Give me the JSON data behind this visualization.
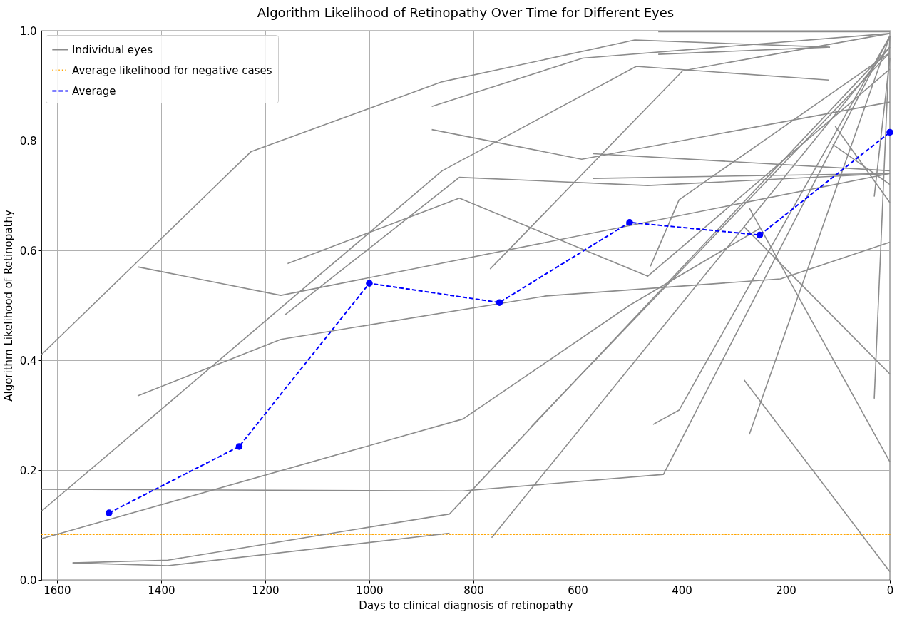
{
  "chart_data": {
    "type": "line",
    "title": "Algorithm Likelihood of Retinopathy Over Time for Different Eyes",
    "xlabel": "Days to clinical diagnosis of retinopathy",
    "ylabel": "Algorithm Likelihood of Retinopathy",
    "xlim": [
      1630,
      0
    ],
    "xticks": [
      1600,
      1400,
      1200,
      1000,
      800,
      600,
      400,
      200,
      0
    ],
    "ylim": [
      0,
      1
    ],
    "yticks": [
      {
        "value": 0,
        "label": "0.0"
      },
      {
        "value": 0.2,
        "label": "0.2"
      },
      {
        "value": 0.4,
        "label": "0.4"
      },
      {
        "value": 0.6,
        "label": "0.6"
      },
      {
        "value": 0.8,
        "label": "0.8"
      },
      {
        "value": 1,
        "label": "1.0"
      }
    ],
    "grid": true,
    "legend": "top left",
    "ref_lines": [
      {
        "axis": "y",
        "value": 0.083,
        "label": "Average likelihood for negative cases",
        "color": "#ffa500",
        "line_style": "dotted"
      }
    ],
    "series": [
      {
        "name": "Individual eyes",
        "color": "#8c8c8c",
        "line_style": "solid",
        "x": [
          1630,
          1227,
          860,
          490,
          115
        ],
        "values": [
          0.41,
          0.78,
          0.907,
          0.983,
          0.97
        ]
      },
      {
        "color": "#8c8c8c",
        "line_style": "solid",
        "x": [
          880,
          590,
          0
        ],
        "values": [
          0.862,
          0.95,
          0.995
        ]
      },
      {
        "color": "#8c8c8c",
        "line_style": "solid",
        "x": [
          880,
          592,
          0
        ],
        "values": [
          0.82,
          0.766,
          0.87
        ]
      },
      {
        "color": "#8c8c8c",
        "line_style": "solid",
        "x": [
          1630,
          860,
          487,
          117
        ],
        "values": [
          0.125,
          0.745,
          0.935,
          0.91
        ]
      },
      {
        "color": "#8c8c8c",
        "line_style": "solid",
        "x": [
          1630,
          820,
          500,
          250
        ],
        "values": [
          0.075,
          0.293,
          0.5,
          0.64
        ]
      },
      {
        "color": "#8c8c8c",
        "line_style": "solid",
        "x": [
          1630,
          820,
          435,
          0
        ],
        "values": [
          0.165,
          0.162,
          0.192,
          0.99
        ]
      },
      {
        "color": "#8c8c8c",
        "line_style": "solid",
        "x": [
          1570,
          1387,
          846,
          0
        ],
        "values": [
          0.031,
          0.036,
          0.12,
          0.97
        ]
      },
      {
        "color": "#8c8c8c",
        "line_style": "solid",
        "x": [
          1570,
          1387,
          846
        ],
        "values": [
          0.031,
          0.026,
          0.085
        ]
      },
      {
        "color": "#8c8c8c",
        "line_style": "solid",
        "x": [
          765,
          0
        ],
        "values": [
          0.077,
          0.97
        ]
      },
      {
        "color": "#8c8c8c",
        "line_style": "solid",
        "x": [
          1445,
          1170,
          660,
          210,
          0
        ],
        "values": [
          0.335,
          0.438,
          0.517,
          0.548,
          0.615
        ]
      },
      {
        "color": "#8c8c8c",
        "line_style": "solid",
        "x": [
          1445,
          1170,
          0
        ],
        "values": [
          0.57,
          0.518,
          0.74
        ]
      },
      {
        "color": "#8c8c8c",
        "line_style": "solid",
        "x": [
          1157,
          827,
          465,
          0
        ],
        "values": [
          0.576,
          0.695,
          0.553,
          0.93
        ]
      },
      {
        "color": "#8c8c8c",
        "line_style": "solid",
        "x": [
          1163,
          827,
          465,
          0
        ],
        "values": [
          0.482,
          0.733,
          0.718,
          0.74
        ]
      },
      {
        "color": "#8c8c8c",
        "line_style": "solid",
        "x": [
          768,
          398,
          0
        ],
        "values": [
          0.566,
          0.927,
          0.995
        ]
      },
      {
        "color": "#8c8c8c",
        "line_style": "solid",
        "x": [
          570,
          0
        ],
        "values": [
          0.776,
          0.745
        ]
      },
      {
        "color": "#8c8c8c",
        "line_style": "solid",
        "x": [
          570,
          0
        ],
        "values": [
          0.731,
          0.74
        ]
      },
      {
        "color": "#8c8c8c",
        "line_style": "solid",
        "x": [
          445,
          0
        ],
        "values": [
          0.998,
          0.998
        ]
      },
      {
        "color": "#8c8c8c",
        "line_style": "solid",
        "x": [
          445,
          120
        ],
        "values": [
          0.957,
          0.97
        ]
      },
      {
        "color": "#8c8c8c",
        "line_style": "solid",
        "x": [
          270,
          0
        ],
        "values": [
          0.265,
          0.99
        ]
      },
      {
        "color": "#8c8c8c",
        "line_style": "solid",
        "x": [
          280,
          0
        ],
        "values": [
          0.364,
          0.015
        ]
      },
      {
        "color": "#8c8c8c",
        "line_style": "solid",
        "x": [
          270,
          0
        ],
        "values": [
          0.677,
          0.215
        ]
      },
      {
        "color": "#8c8c8c",
        "line_style": "solid",
        "x": [
          280,
          0
        ],
        "values": [
          0.643,
          0.375
        ]
      },
      {
        "color": "#8c8c8c",
        "line_style": "solid",
        "x": [
          30,
          0
        ],
        "values": [
          0.33,
          0.99
        ]
      },
      {
        "color": "#8c8c8c",
        "line_style": "solid",
        "x": [
          30,
          0
        ],
        "values": [
          0.698,
          0.95
        ]
      },
      {
        "color": "#8c8c8c",
        "line_style": "solid",
        "x": [
          690,
          0
        ],
        "values": [
          0.278,
          0.96
        ]
      },
      {
        "color": "#8c8c8c",
        "line_style": "solid",
        "x": [
          455,
          405,
          0
        ],
        "values": [
          0.283,
          0.309,
          0.99
        ]
      },
      {
        "color": "#8c8c8c",
        "line_style": "solid",
        "x": [
          460,
          405,
          0
        ],
        "values": [
          0.571,
          0.692,
          0.96
        ]
      },
      {
        "color": "#8c8c8c",
        "line_style": "solid",
        "x": [
          105,
          0
        ],
        "values": [
          0.826,
          0.687
        ]
      },
      {
        "color": "#8c8c8c",
        "line_style": "solid",
        "x": [
          110,
          0
        ],
        "values": [
          0.793,
          0.72
        ]
      },
      {
        "name": "Average",
        "color": "#0000ff",
        "line_style": "dashed",
        "marker": "circle",
        "x": [
          1500,
          1250,
          1000,
          750,
          500,
          250,
          0
        ],
        "values": [
          0.122,
          0.243,
          0.54,
          0.505,
          0.651,
          0.628,
          0.815
        ]
      }
    ]
  }
}
